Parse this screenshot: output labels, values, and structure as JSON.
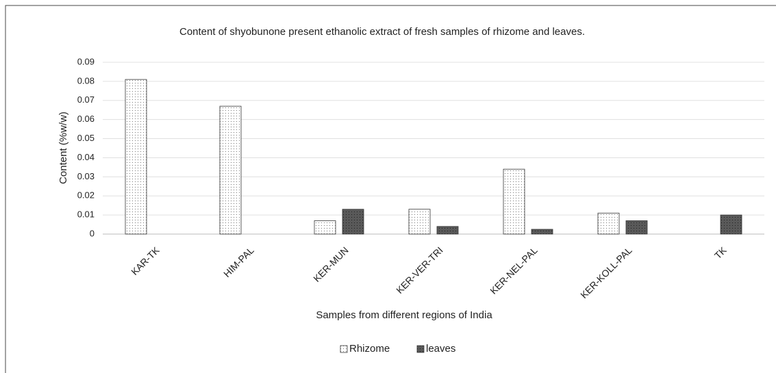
{
  "chart_data": {
    "type": "bar",
    "title": "Content of shyobunone present ethanolic extract of fresh samples of  rhizome and leaves.",
    "x_label": "Samples from different regions of India",
    "y_label": "Content (%w/w)",
    "categories": [
      "KAR-TK",
      "HIM-PAL",
      "KER-MUN",
      "KER-VER-TRI",
      "KER-NEL-PAL",
      "KER-KOLL-PAL",
      "TK"
    ],
    "series": [
      {
        "name": "Rhizome",
        "color": "#ffffff",
        "values": [
          0.081,
          0.067,
          0.007,
          0.013,
          0.034,
          0.011,
          0
        ]
      },
      {
        "name": "leaves",
        "color": "#595959",
        "values": [
          0,
          0,
          0.013,
          0.004,
          0.0025,
          0.007,
          0.01
        ]
      }
    ],
    "ylim": [
      0,
      0.09
    ],
    "yticks": [
      0,
      0.01,
      0.02,
      0.03,
      0.04,
      0.05,
      0.06,
      0.07,
      0.08,
      0.09
    ],
    "grid": true,
    "legend": "bottom"
  }
}
